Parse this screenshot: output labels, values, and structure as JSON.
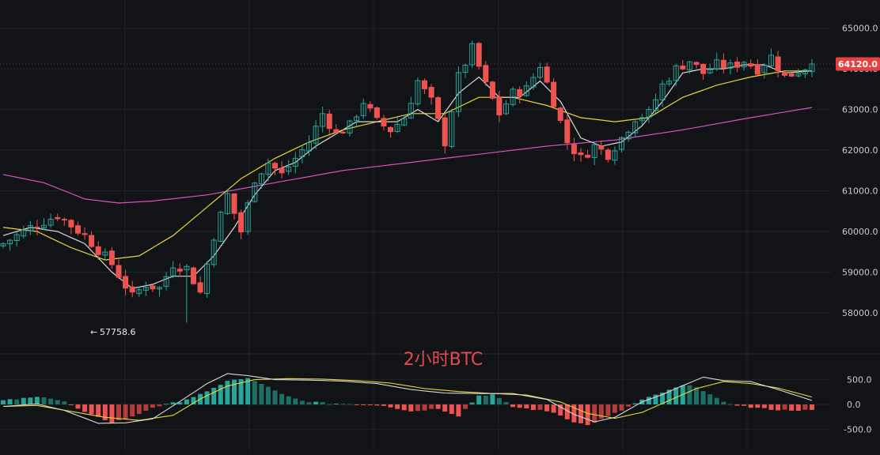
{
  "chart_data": [
    {
      "type": "candlestick",
      "title": "2小时BTC",
      "current_price_label": "64120.0",
      "current_price": 64120,
      "low_marker_label": "57758.6",
      "low_marker_value": 57758.6,
      "low_marker_arrow": "←",
      "ylim": [
        57300,
        65500
      ],
      "y_ticks": [
        {
          "value": 58000,
          "label": "58000.0"
        },
        {
          "value": 59000,
          "label": "59000.0"
        },
        {
          "value": 60000,
          "label": "60000.0"
        },
        {
          "value": 61000,
          "label": "61000.0"
        },
        {
          "value": 62000,
          "label": "62000.0"
        },
        {
          "value": 63000,
          "label": "63000.0"
        },
        {
          "value": 64000,
          "label": "64000.0"
        },
        {
          "value": 65000,
          "label": "65000.0"
        }
      ],
      "grid": true,
      "colors": {
        "up": "#26a69a",
        "down": "#ef5350",
        "ma_fast": "#d9d9d9",
        "ma_mid": "#e8d53a",
        "ma_slow": "#d84fc4",
        "price_tag": "#e84040"
      },
      "close_path": [
        [
          0,
          59700
        ],
        [
          4,
          60100
        ],
        [
          8,
          60400
        ],
        [
          12,
          59900
        ],
        [
          16,
          59200
        ],
        [
          19,
          58400
        ],
        [
          21,
          58700
        ],
        [
          23,
          58600
        ],
        [
          25,
          59200
        ],
        [
          27,
          59100
        ],
        [
          29,
          58500
        ],
        [
          31,
          59900
        ],
        [
          33,
          60900
        ],
        [
          35,
          60000
        ],
        [
          37,
          61300
        ],
        [
          39,
          61700
        ],
        [
          41,
          61400
        ],
        [
          43,
          61800
        ],
        [
          45,
          62200
        ],
        [
          47,
          62900
        ],
        [
          49,
          62400
        ],
        [
          51,
          62600
        ],
        [
          53,
          63200
        ],
        [
          55,
          62700
        ],
        [
          57,
          62500
        ],
        [
          59,
          62800
        ],
        [
          61,
          63700
        ],
        [
          63,
          63200
        ],
        [
          65,
          62200
        ],
        [
          67,
          63800
        ],
        [
          69,
          64500
        ],
        [
          71,
          63600
        ],
        [
          73,
          62900
        ],
        [
          75,
          63400
        ],
        [
          77,
          63500
        ],
        [
          79,
          64100
        ],
        [
          81,
          63200
        ],
        [
          83,
          62200
        ],
        [
          85,
          61800
        ],
        [
          87,
          62100
        ],
        [
          89,
          61900
        ],
        [
          91,
          62300
        ],
        [
          93,
          62800
        ],
        [
          95,
          62900
        ],
        [
          97,
          63600
        ],
        [
          99,
          64000
        ],
        [
          101,
          64200
        ],
        [
          103,
          63900
        ],
        [
          105,
          64100
        ],
        [
          107,
          64050
        ],
        [
          109,
          64200
        ],
        [
          111,
          64000
        ],
        [
          113,
          64300
        ],
        [
          115,
          63800
        ],
        [
          117,
          63950
        ],
        [
          119,
          64120
        ]
      ],
      "ma_fast_path": [
        [
          0,
          59900
        ],
        [
          4,
          60100
        ],
        [
          8,
          60000
        ],
        [
          12,
          59700
        ],
        [
          16,
          59000
        ],
        [
          19,
          58600
        ],
        [
          22,
          58700
        ],
        [
          25,
          58900
        ],
        [
          28,
          58900
        ],
        [
          31,
          59400
        ],
        [
          34,
          60100
        ],
        [
          37,
          60900
        ],
        [
          40,
          61500
        ],
        [
          43,
          61700
        ],
        [
          46,
          62100
        ],
        [
          49,
          62400
        ],
        [
          52,
          62700
        ],
        [
          55,
          62700
        ],
        [
          58,
          62700
        ],
        [
          61,
          63000
        ],
        [
          64,
          62700
        ],
        [
          67,
          63400
        ],
        [
          70,
          63800
        ],
        [
          73,
          63300
        ],
        [
          76,
          63300
        ],
        [
          79,
          63700
        ],
        [
          82,
          63200
        ],
        [
          85,
          62300
        ],
        [
          88,
          62100
        ],
        [
          91,
          62200
        ],
        [
          94,
          62600
        ],
        [
          97,
          63200
        ],
        [
          100,
          63900
        ],
        [
          103,
          64000
        ],
        [
          106,
          64000
        ],
        [
          109,
          64100
        ],
        [
          112,
          64100
        ],
        [
          115,
          63900
        ],
        [
          119,
          63950
        ]
      ],
      "ma_mid_path": [
        [
          0,
          60100
        ],
        [
          5,
          60000
        ],
        [
          10,
          59600
        ],
        [
          15,
          59300
        ],
        [
          20,
          59400
        ],
        [
          25,
          59900
        ],
        [
          30,
          60600
        ],
        [
          35,
          61300
        ],
        [
          40,
          61800
        ],
        [
          45,
          62200
        ],
        [
          50,
          62500
        ],
        [
          55,
          62700
        ],
        [
          60,
          62900
        ],
        [
          65,
          62900
        ],
        [
          70,
          63300
        ],
        [
          75,
          63300
        ],
        [
          80,
          63100
        ],
        [
          85,
          62800
        ],
        [
          90,
          62700
        ],
        [
          95,
          62800
        ],
        [
          100,
          63300
        ],
        [
          105,
          63600
        ],
        [
          110,
          63800
        ],
        [
          115,
          63950
        ],
        [
          119,
          63950
        ]
      ],
      "ma_slow_path": [
        [
          0,
          61400
        ],
        [
          6,
          61200
        ],
        [
          12,
          60800
        ],
        [
          17,
          60700
        ],
        [
          22,
          60750
        ],
        [
          30,
          60900
        ],
        [
          40,
          61200
        ],
        [
          50,
          61500
        ],
        [
          60,
          61700
        ],
        [
          70,
          61900
        ],
        [
          80,
          62100
        ],
        [
          90,
          62250
        ],
        [
          100,
          62500
        ],
        [
          110,
          62800
        ],
        [
          119,
          63050
        ]
      ],
      "candle_count": 120
    },
    {
      "type": "bar",
      "ylim": [
        -700,
        700
      ],
      "y_ticks": [
        {
          "value": 500,
          "label": "500.0"
        },
        {
          "value": 0,
          "label": "0.0"
        },
        {
          "value": -500,
          "label": "-500.0"
        }
      ],
      "hist_path": [
        [
          0,
          80
        ],
        [
          6,
          160
        ],
        [
          9,
          60
        ],
        [
          12,
          -160
        ],
        [
          16,
          -360
        ],
        [
          19,
          -250
        ],
        [
          22,
          -60
        ],
        [
          26,
          60
        ],
        [
          30,
          250
        ],
        [
          33,
          480
        ],
        [
          36,
          520
        ],
        [
          38,
          420
        ],
        [
          41,
          200
        ],
        [
          44,
          70
        ],
        [
          48,
          20
        ],
        [
          52,
          10
        ],
        [
          56,
          -20
        ],
        [
          60,
          -140
        ],
        [
          64,
          -80
        ],
        [
          67,
          -230
        ],
        [
          70,
          180
        ],
        [
          72,
          200
        ],
        [
          75,
          -50
        ],
        [
          78,
          -100
        ],
        [
          81,
          -160
        ],
        [
          84,
          -350
        ],
        [
          86,
          -420
        ],
        [
          88,
          -300
        ],
        [
          91,
          -120
        ],
        [
          94,
          90
        ],
        [
          97,
          240
        ],
        [
          100,
          380
        ],
        [
          102,
          360
        ],
        [
          104,
          200
        ],
        [
          106,
          40
        ],
        [
          110,
          -60
        ],
        [
          114,
          -110
        ],
        [
          119,
          -120
        ]
      ],
      "macd_path": [
        [
          0,
          -40
        ],
        [
          5,
          10
        ],
        [
          9,
          -120
        ],
        [
          14,
          -380
        ],
        [
          18,
          -370
        ],
        [
          22,
          -290
        ],
        [
          26,
          60
        ],
        [
          30,
          420
        ],
        [
          33,
          620
        ],
        [
          36,
          580
        ],
        [
          40,
          500
        ],
        [
          45,
          490
        ],
        [
          50,
          470
        ],
        [
          55,
          420
        ],
        [
          60,
          300
        ],
        [
          65,
          230
        ],
        [
          70,
          220
        ],
        [
          75,
          220
        ],
        [
          80,
          100
        ],
        [
          84,
          -200
        ],
        [
          87,
          -350
        ],
        [
          90,
          -260
        ],
        [
          94,
          50
        ],
        [
          97,
          200
        ],
        [
          100,
          380
        ],
        [
          103,
          550
        ],
        [
          106,
          480
        ],
        [
          110,
          460
        ],
        [
          114,
          300
        ],
        [
          119,
          80
        ]
      ],
      "signal_path": [
        [
          0,
          -40
        ],
        [
          5,
          -20
        ],
        [
          10,
          -140
        ],
        [
          15,
          -260
        ],
        [
          20,
          -320
        ],
        [
          25,
          -220
        ],
        [
          29,
          110
        ],
        [
          33,
          370
        ],
        [
          37,
          500
        ],
        [
          42,
          520
        ],
        [
          47,
          510
        ],
        [
          52,
          480
        ],
        [
          57,
          430
        ],
        [
          62,
          320
        ],
        [
          67,
          260
        ],
        [
          72,
          220
        ],
        [
          77,
          190
        ],
        [
          82,
          50
        ],
        [
          86,
          -180
        ],
        [
          90,
          -280
        ],
        [
          94,
          -160
        ],
        [
          98,
          80
        ],
        [
          102,
          320
        ],
        [
          106,
          460
        ],
        [
          110,
          420
        ],
        [
          114,
          330
        ],
        [
          119,
          150
        ]
      ]
    }
  ]
}
